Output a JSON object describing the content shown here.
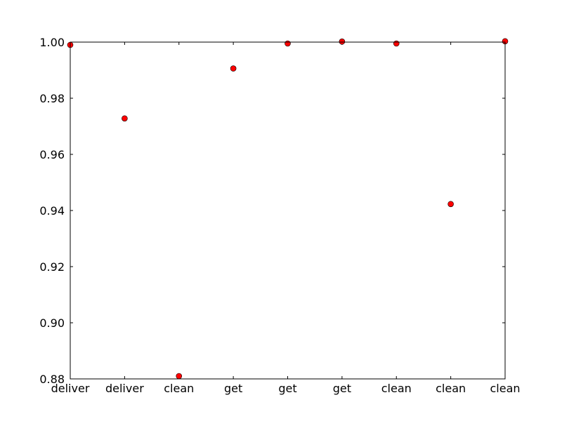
{
  "chart_data": {
    "type": "scatter",
    "title": "",
    "xlabel": "",
    "ylabel": "",
    "categories": [
      "deliver",
      "deliver",
      "clean",
      "get",
      "get",
      "get",
      "clean",
      "clean",
      "clean"
    ],
    "series": [
      {
        "values": [
          0.999,
          0.9728,
          0.881,
          0.9906,
          0.9995,
          1.0002,
          0.9995,
          0.9423,
          1.0003
        ]
      }
    ],
    "ylim": [
      0.88,
      1.0
    ],
    "yticks": [
      "0.88",
      "0.90",
      "0.92",
      "0.94",
      "0.96",
      "0.98",
      "1.00"
    ],
    "grid": false,
    "legend": "none",
    "colors": {
      "marker_fill": "#ff0000",
      "marker_stroke": "#000000",
      "axes": "#000000"
    }
  }
}
